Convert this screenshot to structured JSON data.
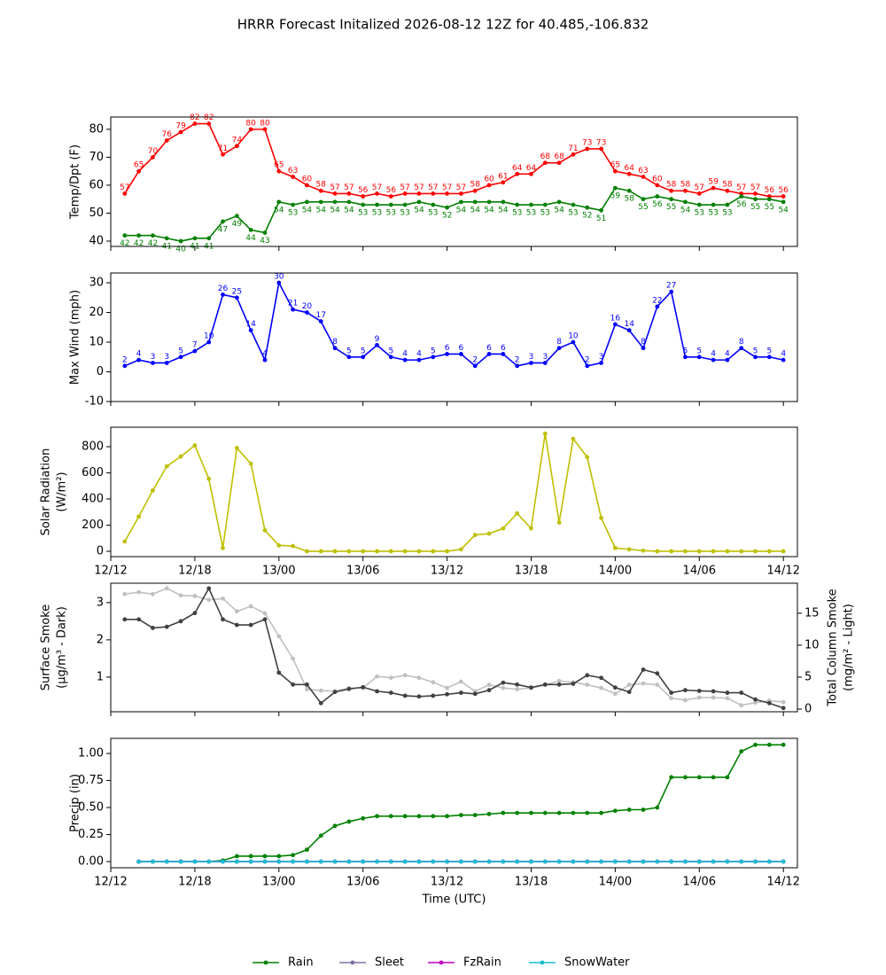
{
  "title": "HRRR Forecast Initalized 2026-08-12 12Z for 40.485,-106.832",
  "chart_data": [
    {
      "type": "line",
      "ylabel": [
        "Temp/Dpt (F)"
      ],
      "x": [
        "12/13",
        "12/14",
        "12/15",
        "12/16",
        "12/17",
        "12/18",
        "12/19",
        "12/20",
        "12/21",
        "12/22",
        "12/23",
        "13/00",
        "13/01",
        "13/02",
        "13/03",
        "13/04",
        "13/05",
        "13/06",
        "13/07",
        "13/08",
        "13/09",
        "13/10",
        "13/11",
        "13/12",
        "13/13",
        "13/14",
        "13/15",
        "13/16",
        "13/17",
        "13/18",
        "13/19",
        "13/20",
        "13/21",
        "13/22",
        "13/23",
        "14/00",
        "14/01",
        "14/02",
        "14/03",
        "14/04",
        "14/05",
        "14/06",
        "14/07",
        "14/08",
        "14/09",
        "14/10",
        "14/11",
        "14/12"
      ],
      "xlim": [
        "12/12",
        "14/13"
      ],
      "xticks": [
        "12/12",
        "12/18",
        "13/00",
        "13/06",
        "13/12",
        "13/18",
        "14/00",
        "14/06",
        "14/12"
      ],
      "xtick_labels": false,
      "ylim": [
        38.1,
        84.4
      ],
      "yticks": [
        40,
        50,
        60,
        70,
        80
      ],
      "series": [
        {
          "name": "Temp",
          "color": "#ff0000",
          "data_labels": "above",
          "values": [
            57,
            65,
            70,
            76,
            79,
            82,
            82,
            71,
            74,
            80,
            80,
            65,
            63,
            60,
            58,
            57,
            57,
            56,
            57,
            56,
            57,
            57,
            57,
            57,
            57,
            58,
            60,
            61,
            64,
            64,
            68,
            68,
            71,
            73,
            73,
            65,
            64,
            63,
            60,
            58,
            58,
            57,
            59,
            58,
            57,
            57,
            56,
            56
          ]
        },
        {
          "name": "Dewpoint",
          "color": "#008000",
          "data_labels": "below",
          "values": [
            42,
            42,
            42,
            41,
            40,
            41,
            41,
            47,
            49,
            44,
            43,
            54,
            53,
            54,
            54,
            54,
            54,
            53,
            53,
            53,
            53,
            54,
            53,
            52,
            54,
            54,
            54,
            54,
            53,
            53,
            53,
            54,
            53,
            52,
            51,
            59,
            58,
            55,
            56,
            55,
            54,
            53,
            53,
            53,
            56,
            55,
            55,
            54
          ]
        }
      ]
    },
    {
      "type": "line",
      "ylabel": [
        "Max Wind (mph)"
      ],
      "x": [
        "12/13",
        "12/14",
        "12/15",
        "12/16",
        "12/17",
        "12/18",
        "12/19",
        "12/20",
        "12/21",
        "12/22",
        "12/23",
        "13/00",
        "13/01",
        "13/02",
        "13/03",
        "13/04",
        "13/05",
        "13/06",
        "13/07",
        "13/08",
        "13/09",
        "13/10",
        "13/11",
        "13/12",
        "13/13",
        "13/14",
        "13/15",
        "13/16",
        "13/17",
        "13/18",
        "13/19",
        "13/20",
        "13/21",
        "13/22",
        "13/23",
        "14/00",
        "14/01",
        "14/02",
        "14/03",
        "14/04",
        "14/05",
        "14/06",
        "14/07",
        "14/08",
        "14/09",
        "14/10",
        "14/11",
        "14/12"
      ],
      "xlim": [
        "12/12",
        "14/13"
      ],
      "xticks": [
        "12/12",
        "12/18",
        "13/00",
        "13/06",
        "13/12",
        "13/18",
        "14/00",
        "14/06",
        "14/12"
      ],
      "xtick_labels": false,
      "ylim": [
        -10,
        33.3
      ],
      "yticks": [
        -10,
        0,
        10,
        20,
        30
      ],
      "series": [
        {
          "name": "Max Wind",
          "color": "#0000ff",
          "data_labels": "above",
          "values": [
            2,
            4,
            3,
            3,
            5,
            7,
            10,
            26,
            25,
            14,
            4,
            30,
            21,
            20,
            17,
            8,
            5,
            5,
            9,
            5,
            4,
            4,
            5,
            6,
            6,
            2,
            6,
            6,
            2,
            3,
            3,
            8,
            10,
            2,
            3,
            16,
            14,
            8,
            22,
            27,
            5,
            5,
            4,
            4,
            8,
            5,
            5,
            4
          ]
        }
      ]
    },
    {
      "type": "line",
      "ylabel": [
        "Solar Radiation",
        "(W/m²)"
      ],
      "x": [
        "12/13",
        "12/14",
        "12/15",
        "12/16",
        "12/17",
        "12/18",
        "12/19",
        "12/20",
        "12/21",
        "12/22",
        "12/23",
        "13/00",
        "13/01",
        "13/02",
        "13/03",
        "13/04",
        "13/05",
        "13/06",
        "13/07",
        "13/08",
        "13/09",
        "13/10",
        "13/11",
        "13/12",
        "13/13",
        "13/14",
        "13/15",
        "13/16",
        "13/17",
        "13/18",
        "13/19",
        "13/20",
        "13/21",
        "13/22",
        "13/23",
        "14/00",
        "14/01",
        "14/02",
        "14/03",
        "14/04",
        "14/05",
        "14/06",
        "14/07",
        "14/08",
        "14/09",
        "14/10",
        "14/11",
        "14/12"
      ],
      "xlim": [
        "12/12",
        "14/13"
      ],
      "xticks": [
        "12/12",
        "12/18",
        "13/00",
        "13/06",
        "13/12",
        "13/18",
        "14/00",
        "14/06",
        "14/12"
      ],
      "xtick_labels": true,
      "ylim": [
        -41,
        949
      ],
      "yticks": [
        0,
        200,
        400,
        600,
        800
      ],
      "series": [
        {
          "name": "Solar Radiation",
          "color": "#bfbf00",
          "values": [
            75,
            265,
            465,
            650,
            725,
            810,
            555,
            25,
            790,
            670,
            160,
            45,
            40,
            0,
            0,
            0,
            0,
            0,
            0,
            0,
            0,
            0,
            0,
            0,
            15,
            125,
            135,
            175,
            290,
            175,
            900,
            220,
            860,
            720,
            255,
            25,
            15,
            5,
            0,
            0,
            0,
            0,
            0,
            0,
            0,
            0,
            0,
            0
          ]
        }
      ]
    },
    {
      "type": "line",
      "ylabel": [
        "Surface Smoke",
        "(μg/m³ - Dark)"
      ],
      "y2label": [
        "Total Column Smoke",
        "(mg/m² - Light)"
      ],
      "x": [
        "12/13",
        "12/14",
        "12/15",
        "12/16",
        "12/17",
        "12/18",
        "12/19",
        "12/20",
        "12/21",
        "12/22",
        "12/23",
        "13/00",
        "13/01",
        "13/02",
        "13/03",
        "13/04",
        "13/05",
        "13/06",
        "13/07",
        "13/08",
        "13/09",
        "13/10",
        "13/11",
        "13/12",
        "13/13",
        "13/14",
        "13/15",
        "13/16",
        "13/17",
        "13/18",
        "13/19",
        "13/20",
        "13/21",
        "13/22",
        "13/23",
        "14/00",
        "14/01",
        "14/02",
        "14/03",
        "14/04",
        "14/05",
        "14/06",
        "14/07",
        "14/08",
        "14/09",
        "14/10",
        "14/11",
        "14/12"
      ],
      "xlim": [
        "12/12",
        "14/13"
      ],
      "xticks": [
        "12/12",
        "12/18",
        "13/00",
        "13/06",
        "13/12",
        "13/18",
        "14/00",
        "14/06",
        "14/12"
      ],
      "xtick_labels": false,
      "ylim": [
        0.07,
        3.52
      ],
      "yticks": [
        1,
        2,
        3
      ],
      "y2lim": [
        -0.42,
        19.7
      ],
      "y2ticks": [
        0,
        5,
        10,
        15
      ],
      "series": [
        {
          "name": "Total Column Smoke",
          "color": "#c0c0c0",
          "axis": "y2",
          "values": [
            18.0,
            18.3,
            18.0,
            18.9,
            17.8,
            17.7,
            17.1,
            17.3,
            15.3,
            16.1,
            15.0,
            11.4,
            7.9,
            3.1,
            2.9,
            2.8,
            3.3,
            3.3,
            5.1,
            4.9,
            5.3,
            4.9,
            4.2,
            3.3,
            4.3,
            2.8,
            3.8,
            3.3,
            3.1,
            3.3,
            3.8,
            4.4,
            4.2,
            3.8,
            3.3,
            2.4,
            3.8,
            4.0,
            3.8,
            1.7,
            1.4,
            1.8,
            1.8,
            1.7,
            0.6,
            1.0,
            1.3,
            1.1
          ]
        },
        {
          "name": "Surface Smoke",
          "color": "#404040",
          "values": [
            2.55,
            2.55,
            2.32,
            2.35,
            2.5,
            2.72,
            3.38,
            2.55,
            2.4,
            2.4,
            2.55,
            1.12,
            0.8,
            0.8,
            0.3,
            0.6,
            0.68,
            0.73,
            0.62,
            0.58,
            0.5,
            0.48,
            0.5,
            0.54,
            0.58,
            0.55,
            0.65,
            0.85,
            0.8,
            0.72,
            0.8,
            0.8,
            0.82,
            1.05,
            0.98,
            0.72,
            0.6,
            1.2,
            1.1,
            0.58,
            0.65,
            0.63,
            0.62,
            0.58,
            0.58,
            0.4,
            0.3,
            0.17
          ]
        }
      ]
    },
    {
      "type": "line",
      "ylabel": [
        "Precip (in)"
      ],
      "xlabel": "Time (UTC)",
      "legend": "lower center",
      "x": [
        "12/13",
        "12/14",
        "12/15",
        "12/16",
        "12/17",
        "12/18",
        "12/19",
        "12/20",
        "12/21",
        "12/22",
        "12/23",
        "13/00",
        "13/01",
        "13/02",
        "13/03",
        "13/04",
        "13/05",
        "13/06",
        "13/07",
        "13/08",
        "13/09",
        "13/10",
        "13/11",
        "13/12",
        "13/13",
        "13/14",
        "13/15",
        "13/16",
        "13/17",
        "13/18",
        "13/19",
        "13/20",
        "13/21",
        "13/22",
        "13/23",
        "14/00",
        "14/01",
        "14/02",
        "14/03",
        "14/04",
        "14/05",
        "14/06",
        "14/07",
        "14/08",
        "14/09",
        "14/10",
        "14/11",
        "14/12"
      ],
      "xlim": [
        "12/12",
        "14/13"
      ],
      "xticks": [
        "12/12",
        "12/18",
        "13/00",
        "13/06",
        "13/12",
        "13/18",
        "14/00",
        "14/06",
        "14/12"
      ],
      "xtick_labels": true,
      "ylim": [
        -0.057,
        1.14
      ],
      "yticks": [
        {
          "value": 0,
          "label": "0.00"
        },
        {
          "value": 0.25,
          "label": "0.25"
        },
        {
          "value": 0.5,
          "label": "0.50"
        },
        {
          "value": 0.75,
          "label": "0.75"
        },
        {
          "value": 1,
          "label": "1.00"
        }
      ],
      "series": [
        {
          "name": "Rain",
          "color": "#008000",
          "values": [
            null,
            0,
            0,
            0,
            0,
            0,
            0,
            0.01,
            0.05,
            0.05,
            0.05,
            0.05,
            0.06,
            0.11,
            0.24,
            0.33,
            0.37,
            0.4,
            0.42,
            0.42,
            0.42,
            0.42,
            0.42,
            0.42,
            0.43,
            0.43,
            0.44,
            0.45,
            0.45,
            0.45,
            0.45,
            0.45,
            0.45,
            0.45,
            0.45,
            0.47,
            0.48,
            0.48,
            0.5,
            0.78,
            0.78,
            0.78,
            0.78,
            0.78,
            1.02,
            1.08,
            1.08,
            1.08
          ]
        },
        {
          "name": "Sleet",
          "color": "#8070a0",
          "values": [
            null,
            0,
            0,
            0,
            0,
            0,
            0,
            0,
            0,
            0,
            0,
            0,
            0,
            0,
            0,
            0,
            0,
            0,
            0,
            0,
            0,
            0,
            0,
            0,
            0,
            0,
            0,
            0,
            0,
            0,
            0,
            0,
            0,
            0,
            0,
            0,
            0,
            0,
            0,
            0,
            0,
            0,
            0,
            0,
            0,
            0,
            0,
            0
          ]
        },
        {
          "name": "FzRain",
          "color": "#c000c0",
          "values": [
            null,
            0,
            0,
            0,
            0,
            0,
            0,
            0,
            0,
            0,
            0,
            0,
            0,
            0,
            0,
            0,
            0,
            0,
            0,
            0,
            0,
            0,
            0,
            0,
            0,
            0,
            0,
            0,
            0,
            0,
            0,
            0,
            0,
            0,
            0,
            0,
            0,
            0,
            0,
            0,
            0,
            0,
            0,
            0,
            0,
            0,
            0,
            0
          ]
        },
        {
          "name": "SnowWater",
          "color": "#17becf",
          "values": [
            null,
            0,
            0,
            0,
            0,
            0,
            0,
            0,
            0,
            0,
            0,
            0,
            0,
            0,
            0,
            0,
            0,
            0,
            0,
            0,
            0,
            0,
            0,
            0,
            0,
            0,
            0,
            0,
            0,
            0,
            0,
            0,
            0,
            0,
            0,
            0,
            0,
            0,
            0,
            0,
            0,
            0,
            0,
            0,
            0,
            0,
            0,
            0
          ]
        }
      ]
    }
  ]
}
